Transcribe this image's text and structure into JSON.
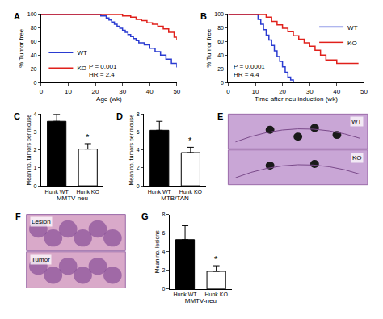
{
  "chart_data": [
    {
      "title": "A",
      "type": "line",
      "line_style": "step",
      "xlabel": "Age (wk)",
      "ylabel": "% Tumor free",
      "xlim": [
        0,
        50
      ],
      "xticks": [
        0,
        10,
        20,
        30,
        40,
        50
      ],
      "ylim": [
        0,
        100
      ],
      "yticks": [
        0,
        20,
        40,
        60,
        80,
        100
      ],
      "grid": false,
      "legend": "bottom left",
      "annotations": [
        "P = 0.001",
        "HR = 2.4"
      ],
      "series": [
        {
          "name": "WT",
          "color": "#2a3bd1",
          "x": [
            0,
            20,
            22,
            24,
            25,
            26,
            27,
            28,
            29,
            30,
            31,
            32,
            33,
            34,
            35,
            36,
            38,
            40,
            42,
            44,
            46,
            48,
            50
          ],
          "values": [
            100,
            100,
            97,
            94,
            91,
            88,
            85,
            82,
            79,
            76,
            73,
            70,
            67,
            64,
            61,
            58,
            55,
            50,
            45,
            40,
            34,
            28,
            22
          ]
        },
        {
          "name": "KO",
          "color": "#e0201b",
          "x": [
            0,
            27,
            30,
            33,
            35,
            37,
            39,
            41,
            43,
            45,
            47,
            49,
            50
          ],
          "values": [
            100,
            100,
            97,
            95,
            92,
            90,
            87,
            85,
            82,
            78,
            73,
            66,
            62
          ]
        }
      ]
    },
    {
      "title": "B",
      "type": "line",
      "line_style": "step",
      "xlabel": "Time after neu induction (wk)",
      "ylabel": "% Tumor free",
      "xlim": [
        0,
        50
      ],
      "xticks": [
        0,
        10,
        20,
        30,
        40,
        50
      ],
      "ylim": [
        0,
        100
      ],
      "yticks": [
        0,
        20,
        40,
        60,
        80,
        100
      ],
      "grid": false,
      "legend": "top right",
      "annotations": [
        "P = 0.0001",
        "HR = 4.4"
      ],
      "series": [
        {
          "name": "WT",
          "color": "#2a3bd1",
          "x": [
            0,
            10,
            11,
            12,
            13,
            14,
            15,
            16,
            17,
            18,
            19,
            20,
            21,
            22,
            23,
            24
          ],
          "values": [
            100,
            100,
            92,
            85,
            77,
            69,
            62,
            54,
            46,
            38,
            31,
            23,
            15,
            8,
            4,
            0
          ]
        },
        {
          "name": "KO",
          "color": "#e0201b",
          "x": [
            0,
            12,
            14,
            16,
            18,
            20,
            22,
            24,
            26,
            28,
            30,
            32,
            34,
            36,
            40,
            48
          ],
          "values": [
            100,
            100,
            95,
            89,
            84,
            79,
            74,
            68,
            63,
            58,
            53,
            47,
            40,
            33,
            28,
            28
          ]
        }
      ]
    },
    {
      "title": "C",
      "type": "bar",
      "xlabel": "MMTV-neu",
      "ylabel": "Mean no. tumors per mouse",
      "categories": [
        "Hunk WT",
        "Hunk KO"
      ],
      "values": [
        3.6,
        2.05
      ],
      "errors": [
        0.4,
        0.3
      ],
      "colors": [
        "#000000",
        "#ffffff"
      ],
      "ylim": [
        0,
        4
      ],
      "yticks": [
        0,
        1,
        2,
        3,
        4
      ],
      "grid": false,
      "annotations": [
        {
          "category": "Hunk KO",
          "text": "*"
        }
      ]
    },
    {
      "title": "D",
      "type": "bar",
      "xlabel": "MTB/TAN",
      "ylabel": "Mean no. tumors per mouse",
      "categories": [
        "Hunk WT",
        "Hunk KO"
      ],
      "values": [
        6.2,
        3.7
      ],
      "errors": [
        1.0,
        0.6
      ],
      "colors": [
        "#000000",
        "#ffffff"
      ],
      "ylim": [
        0,
        8
      ],
      "yticks": [
        0,
        2,
        4,
        6,
        8
      ],
      "grid": false,
      "annotations": [
        {
          "category": "Hunk KO",
          "text": "*"
        }
      ]
    },
    {
      "title": "G",
      "type": "bar",
      "xlabel": "MMTV-neu",
      "ylabel": "Mean no. lesions",
      "categories": [
        "Hunk WT",
        "Hunk KO"
      ],
      "values": [
        5.3,
        1.9
      ],
      "errors": [
        1.5,
        0.6
      ],
      "colors": [
        "#000000",
        "#ffffff"
      ],
      "ylim": [
        0,
        8
      ],
      "yticks": [
        0,
        2,
        4,
        6,
        8
      ],
      "grid": false,
      "annotations": [
        {
          "category": "Hunk KO",
          "text": "*"
        }
      ]
    }
  ],
  "images": [
    {
      "title": "E",
      "labels": [
        "WT",
        "KO"
      ]
    },
    {
      "title": "F",
      "labels": [
        "Lesion",
        "Tumor"
      ]
    }
  ]
}
